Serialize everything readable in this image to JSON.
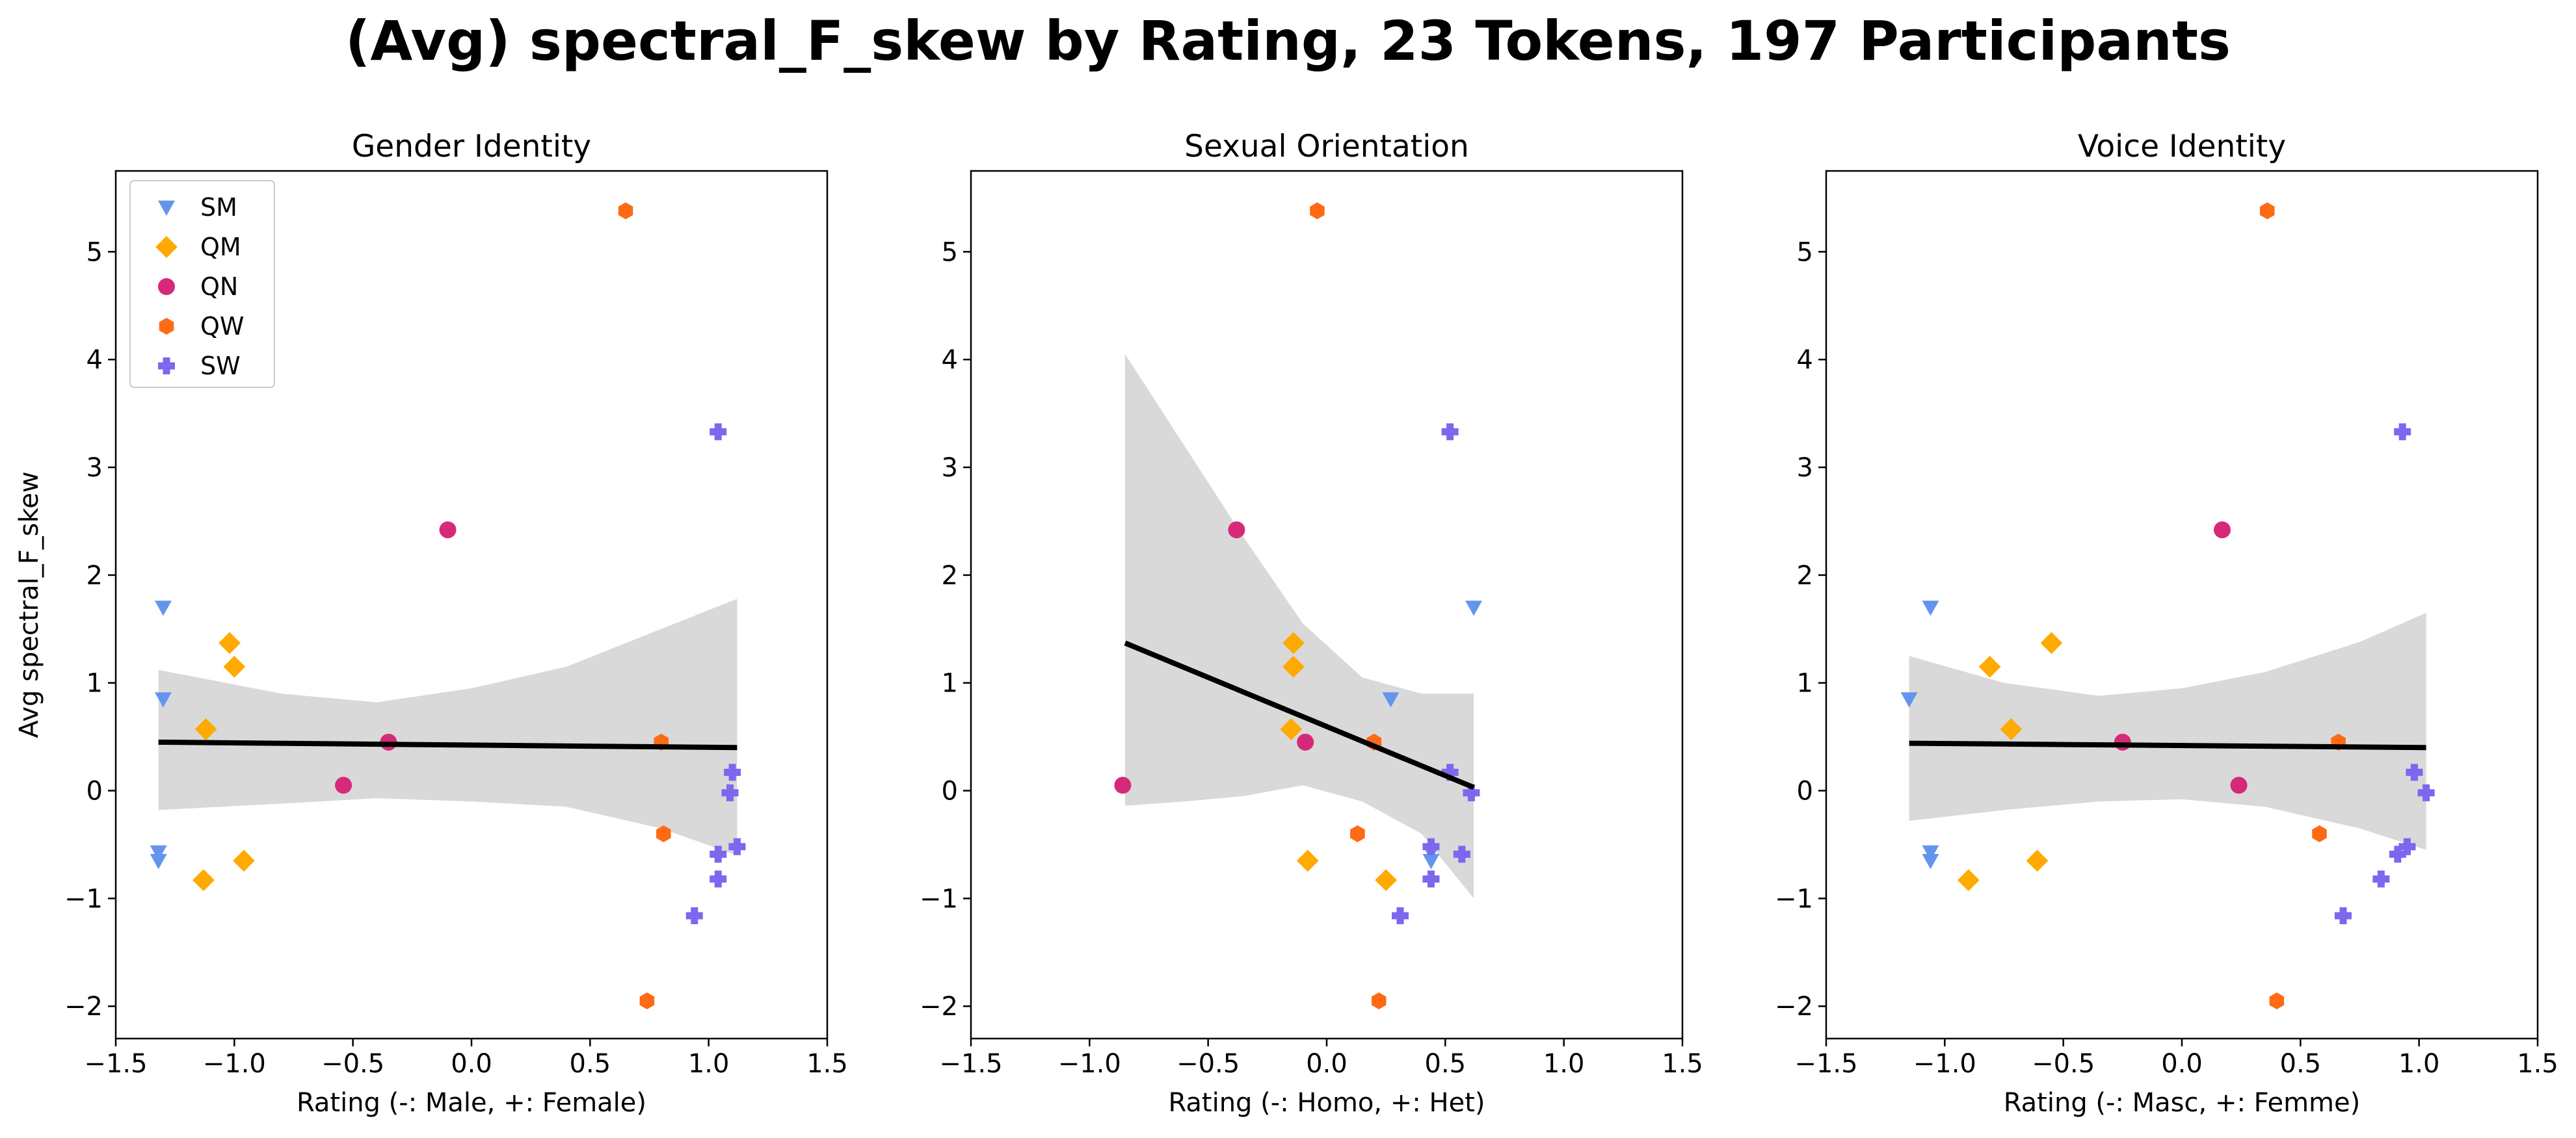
{
  "figure_title": "(Avg) spectral_F_skew by Rating, 23 Tokens, 197 Participants",
  "chart_data": {
    "type": "scatter",
    "title": "(Avg) spectral_F_skew by Rating, 23 Tokens, 197 Participants",
    "ylabel": "Avg spectral_F_skew",
    "ylim": [
      -2.3,
      5.75
    ],
    "xlim": [
      -1.5,
      1.5
    ],
    "x_ticks": [
      "−1.5",
      "−1.0",
      "−0.5",
      "0.0",
      "0.5",
      "1.0",
      "1.5"
    ],
    "y_ticks": [
      "−2",
      "−1",
      "0",
      "1",
      "2",
      "3",
      "4",
      "5"
    ],
    "legend": {
      "placement": "upper-left",
      "entries": [
        {
          "label": "SM",
          "color": "#6495ed",
          "marker": "triangle-down"
        },
        {
          "label": "QM",
          "color": "#ffaa00",
          "marker": "diamond"
        },
        {
          "label": "QN",
          "color": "#d6297a",
          "marker": "circle"
        },
        {
          "label": "QW",
          "color": "#ff6a14",
          "marker": "hexagon"
        },
        {
          "label": "SW",
          "color": "#7b68ee",
          "marker": "plus"
        }
      ]
    },
    "panels": [
      {
        "title": "Gender Identity",
        "xlabel": "Rating (-: Male, +: Female)",
        "show_ylabel": true,
        "show_legend": true,
        "regression": {
          "x": [
            -1.32,
            1.12
          ],
          "y": [
            0.45,
            0.4
          ]
        },
        "ci": {
          "x": [
            -1.32,
            -0.8,
            -0.4,
            0.0,
            0.4,
            0.8,
            1.12
          ],
          "lower": [
            -0.18,
            -0.12,
            -0.07,
            -0.1,
            -0.15,
            -0.35,
            -0.6
          ],
          "upper": [
            1.12,
            0.9,
            0.82,
            0.95,
            1.15,
            1.5,
            1.78
          ]
        },
        "series": [
          {
            "group": "SM",
            "x": [
              -1.3,
              -1.3,
              -1.32,
              -1.32
            ],
            "y": [
              1.7,
              0.85,
              -0.57,
              -0.65
            ]
          },
          {
            "group": "QM",
            "x": [
              -1.02,
              -1.0,
              -1.12,
              -0.96,
              -1.13
            ],
            "y": [
              1.37,
              1.15,
              0.57,
              -0.65,
              -0.83
            ]
          },
          {
            "group": "QN",
            "x": [
              -0.1,
              -0.35,
              -0.54
            ],
            "y": [
              2.42,
              0.45,
              0.05
            ]
          },
          {
            "group": "QW",
            "x": [
              0.65,
              0.8,
              0.81,
              0.74
            ],
            "y": [
              5.38,
              0.45,
              -0.4,
              -1.95
            ]
          },
          {
            "group": "SW",
            "x": [
              1.04,
              1.1,
              1.09,
              1.12,
              1.04,
              1.04,
              0.94
            ],
            "y": [
              3.33,
              0.17,
              -0.02,
              -0.52,
              -0.59,
              -0.82,
              -1.16
            ]
          }
        ]
      },
      {
        "title": "Sexual Orientation",
        "xlabel": "Rating (-: Homo, +: Het)",
        "show_ylabel": false,
        "show_legend": false,
        "regression": {
          "x": [
            -0.85,
            0.62
          ],
          "y": [
            1.37,
            0.03
          ]
        },
        "ci": {
          "x": [
            -0.85,
            -0.6,
            -0.35,
            -0.1,
            0.15,
            0.4,
            0.62
          ],
          "lower": [
            -0.14,
            -0.1,
            -0.05,
            0.05,
            -0.1,
            -0.4,
            -1.0
          ],
          "upper": [
            4.05,
            3.2,
            2.35,
            1.55,
            1.05,
            0.9,
            0.9
          ]
        },
        "series": [
          {
            "group": "SM",
            "x": [
              0.62,
              0.27,
              0.44,
              0.44
            ],
            "y": [
              1.7,
              0.85,
              -0.57,
              -0.65
            ]
          },
          {
            "group": "QM",
            "x": [
              -0.14,
              -0.14,
              -0.15,
              -0.08,
              0.25
            ],
            "y": [
              1.37,
              1.15,
              0.57,
              -0.65,
              -0.83
            ]
          },
          {
            "group": "QN",
            "x": [
              -0.38,
              -0.09,
              -0.86
            ],
            "y": [
              2.42,
              0.45,
              0.05
            ]
          },
          {
            "group": "QW",
            "x": [
              -0.04,
              0.2,
              0.13,
              0.22
            ],
            "y": [
              5.38,
              0.45,
              -0.4,
              -1.95
            ]
          },
          {
            "group": "SW",
            "x": [
              0.52,
              0.52,
              0.61,
              0.44,
              0.57,
              0.44,
              0.31
            ],
            "y": [
              3.33,
              0.17,
              -0.02,
              -0.52,
              -0.59,
              -0.82,
              -1.16
            ]
          }
        ]
      },
      {
        "title": "Voice Identity",
        "xlabel": "Rating (-: Masc, +: Femme)",
        "show_ylabel": false,
        "show_legend": false,
        "regression": {
          "x": [
            -1.15,
            1.03
          ],
          "y": [
            0.44,
            0.4
          ]
        },
        "ci": {
          "x": [
            -1.15,
            -0.75,
            -0.35,
            0.0,
            0.35,
            0.75,
            1.03
          ],
          "lower": [
            -0.28,
            -0.18,
            -0.1,
            -0.08,
            -0.15,
            -0.35,
            -0.55
          ],
          "upper": [
            1.25,
            1.0,
            0.88,
            0.95,
            1.1,
            1.38,
            1.65
          ]
        },
        "series": [
          {
            "group": "SM",
            "x": [
              -1.06,
              -1.15,
              -1.06,
              -1.06
            ],
            "y": [
              1.7,
              0.85,
              -0.57,
              -0.65
            ]
          },
          {
            "group": "QM",
            "x": [
              -0.55,
              -0.81,
              -0.72,
              -0.61,
              -0.9
            ],
            "y": [
              1.37,
              1.15,
              0.57,
              -0.65,
              -0.83
            ]
          },
          {
            "group": "QN",
            "x": [
              0.17,
              -0.25,
              0.24
            ],
            "y": [
              2.42,
              0.45,
              0.05
            ]
          },
          {
            "group": "QW",
            "x": [
              0.36,
              0.66,
              0.58,
              0.4
            ],
            "y": [
              5.38,
              0.45,
              -0.4,
              -1.95
            ]
          },
          {
            "group": "SW",
            "x": [
              0.93,
              0.98,
              1.03,
              0.95,
              0.91,
              0.84,
              0.68
            ],
            "y": [
              3.33,
              0.17,
              -0.02,
              -0.52,
              -0.59,
              -0.82,
              -1.16
            ]
          }
        ]
      }
    ]
  }
}
